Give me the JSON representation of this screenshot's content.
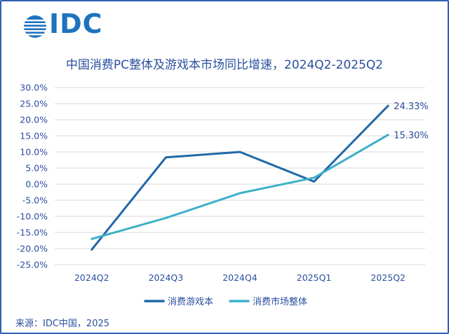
{
  "brand": {
    "logo_text": "IDC"
  },
  "chart_data": {
    "type": "line",
    "title": "中国消费PC整体及游戏本市场同比增速，2024Q2-2025Q2",
    "categories": [
      "2024Q2",
      "2024Q3",
      "2024Q4",
      "2025Q1",
      "2025Q2"
    ],
    "y_ticks": [
      "30.0%",
      "25.0%",
      "20.0%",
      "15.0%",
      "10.0%",
      "5.0%",
      "0.0%",
      "-5.0%",
      "-10.0%",
      "-15.0%",
      "-20.0%",
      "-25.0%"
    ],
    "ylim": [
      -25,
      30
    ],
    "grid": true,
    "legend_position": "bottom",
    "series": [
      {
        "name": "消费游戏本",
        "color": "#2068a8",
        "values": [
          -20.3,
          8.3,
          10.0,
          0.8,
          24.33
        ],
        "end_label": "24.33%"
      },
      {
        "name": "消费市场整体",
        "color": "#3db0c8",
        "values": [
          -17.0,
          -10.5,
          -2.8,
          2.0,
          15.3
        ],
        "end_label": "15.30%"
      }
    ]
  },
  "footer": {
    "source": "来源：IDC中国，2025"
  }
}
